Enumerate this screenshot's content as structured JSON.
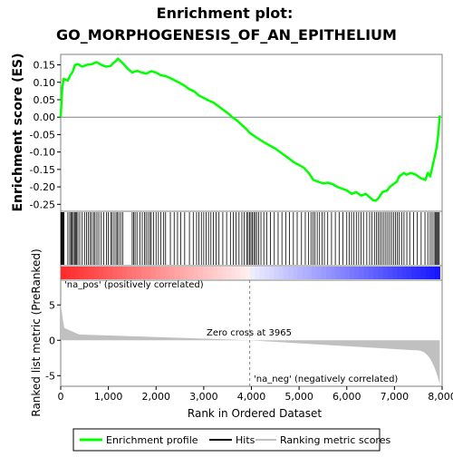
{
  "chart_data": {
    "type": "line",
    "title_line1": "Enrichment plot:",
    "title_line2": "GO_MORPHOGENESIS_OF_AN_EPITHELIUM",
    "es_ylabel": "Enrichment score (ES)",
    "rank_ylabel": "Ranked list metric (PreRanked)",
    "xlabel": "Rank in Ordered Dataset",
    "xlim": [
      0,
      8000
    ],
    "es_ylim": [
      -0.27,
      0.18
    ],
    "rank_ylim": [
      -6.5,
      8.5
    ],
    "x_ticks": [
      0,
      1000,
      2000,
      3000,
      4000,
      5000,
      6000,
      7000,
      8000
    ],
    "x_tick_labels": [
      "0",
      "1,000",
      "2,000",
      "3,000",
      "4,000",
      "5,000",
      "6,000",
      "7,000",
      "8,000"
    ],
    "es_ticks": [
      0.15,
      0.1,
      0.05,
      0.0,
      -0.05,
      -0.1,
      -0.15,
      -0.2,
      -0.25
    ],
    "es_tick_labels": [
      "0.15",
      "0.10",
      "0.05",
      "0.00",
      "-0.05",
      "-0.10",
      "-0.15",
      "-0.20",
      "-0.25"
    ],
    "rank_ticks": [
      5,
      0,
      -5
    ],
    "rank_tick_labels": [
      "5",
      "0",
      "-5"
    ],
    "pos_label": "'na_pos' (positively correlated)",
    "neg_label": "'na_neg' (negatively correlated)",
    "zero_cross_label": "Zero cross at 3965",
    "zero_cross": 3965,
    "n_genes": 7950,
    "legend": [
      {
        "key": "es",
        "label": "Enrichment profile",
        "color": "#00ff00"
      },
      {
        "key": "hits",
        "label": "Hits",
        "color": "#000000"
      },
      {
        "key": "rank",
        "label": "Ranking metric scores",
        "color": "#c0c0c0"
      }
    ],
    "colors": {
      "es_line": "#00ff00",
      "hits": "#000000",
      "rank_fill": "#c0c0c0",
      "pos_text": "#ff0000",
      "neg_text": "#0000ff",
      "zero_line": "#808080"
    },
    "es_series": [
      [
        0,
        0.0
      ],
      [
        30,
        0.08
      ],
      [
        60,
        0.11
      ],
      [
        150,
        0.105
      ],
      [
        200,
        0.12
      ],
      [
        250,
        0.13
      ],
      [
        300,
        0.15
      ],
      [
        360,
        0.152
      ],
      [
        450,
        0.145
      ],
      [
        550,
        0.15
      ],
      [
        650,
        0.152
      ],
      [
        750,
        0.158
      ],
      [
        850,
        0.15
      ],
      [
        950,
        0.145
      ],
      [
        1050,
        0.147
      ],
      [
        1100,
        0.155
      ],
      [
        1150,
        0.16
      ],
      [
        1200,
        0.168
      ],
      [
        1300,
        0.155
      ],
      [
        1400,
        0.14
      ],
      [
        1500,
        0.128
      ],
      [
        1600,
        0.133
      ],
      [
        1700,
        0.128
      ],
      [
        1800,
        0.125
      ],
      [
        1900,
        0.132
      ],
      [
        2000,
        0.128
      ],
      [
        2100,
        0.12
      ],
      [
        2200,
        0.118
      ],
      [
        2300,
        0.112
      ],
      [
        2400,
        0.105
      ],
      [
        2500,
        0.098
      ],
      [
        2600,
        0.09
      ],
      [
        2700,
        0.08
      ],
      [
        2800,
        0.074
      ],
      [
        2900,
        0.062
      ],
      [
        3000,
        0.055
      ],
      [
        3100,
        0.048
      ],
      [
        3200,
        0.042
      ],
      [
        3300,
        0.032
      ],
      [
        3400,
        0.022
      ],
      [
        3500,
        0.012
      ],
      [
        3600,
        0.0
      ],
      [
        3700,
        -0.01
      ],
      [
        3800,
        -0.022
      ],
      [
        3900,
        -0.035
      ],
      [
        3965,
        -0.045
      ],
      [
        4100,
        -0.058
      ],
      [
        4300,
        -0.075
      ],
      [
        4500,
        -0.09
      ],
      [
        4700,
        -0.11
      ],
      [
        4900,
        -0.13
      ],
      [
        5100,
        -0.145
      ],
      [
        5200,
        -0.16
      ],
      [
        5300,
        -0.18
      ],
      [
        5400,
        -0.185
      ],
      [
        5500,
        -0.19
      ],
      [
        5600,
        -0.188
      ],
      [
        5700,
        -0.192
      ],
      [
        5800,
        -0.2
      ],
      [
        5900,
        -0.205
      ],
      [
        6000,
        -0.21
      ],
      [
        6100,
        -0.22
      ],
      [
        6200,
        -0.215
      ],
      [
        6300,
        -0.225
      ],
      [
        6400,
        -0.22
      ],
      [
        6500,
        -0.232
      ],
      [
        6550,
        -0.238
      ],
      [
        6600,
        -0.24
      ],
      [
        6650,
        -0.235
      ],
      [
        6700,
        -0.225
      ],
      [
        6750,
        -0.215
      ],
      [
        6850,
        -0.21
      ],
      [
        6900,
        -0.2
      ],
      [
        7000,
        -0.19
      ],
      [
        7050,
        -0.185
      ],
      [
        7100,
        -0.17
      ],
      [
        7200,
        -0.16
      ],
      [
        7250,
        -0.165
      ],
      [
        7350,
        -0.16
      ],
      [
        7450,
        -0.165
      ],
      [
        7550,
        -0.175
      ],
      [
        7650,
        -0.18
      ],
      [
        7700,
        -0.16
      ],
      [
        7750,
        -0.17
      ],
      [
        7800,
        -0.14
      ],
      [
        7850,
        -0.11
      ],
      [
        7880,
        -0.09
      ],
      [
        7910,
        -0.06
      ],
      [
        7930,
        -0.03
      ],
      [
        7950,
        0.005
      ]
    ],
    "hits": [
      5,
      15,
      28,
      40,
      55,
      70,
      150,
      190,
      215,
      240,
      265,
      290,
      310,
      330,
      360,
      400,
      450,
      500,
      540,
      580,
      620,
      650,
      690,
      720,
      760,
      800,
      850,
      900,
      960,
      1000,
      1050,
      1080,
      1120,
      1160,
      1190,
      1220,
      1260,
      1300,
      1500,
      1530,
      1560,
      1600,
      1660,
      1710,
      1760,
      1790,
      1830,
      1870,
      1900,
      1950,
      2000,
      2050,
      2100,
      2160,
      2200,
      2300,
      2380,
      2450,
      2520,
      2600,
      2700,
      2780,
      2850,
      2900,
      2950,
      3000,
      3050,
      3100,
      3150,
      3200,
      3260,
      3320,
      3400,
      3480,
      3560,
      3620,
      3680,
      3740,
      3800,
      3850,
      3900,
      3930,
      3960,
      3990,
      4020,
      4050,
      4080,
      4110,
      4150,
      4200,
      4260,
      4320,
      4400,
      4480,
      4560,
      4640,
      4720,
      4800,
      4880,
      4960,
      5050,
      5130,
      5200,
      5250,
      5290,
      5330,
      5380,
      5430,
      5480,
      5530,
      5600,
      5680,
      5760,
      5840,
      5920,
      6000,
      6050,
      6100,
      6150,
      6200,
      6250,
      6300,
      6350,
      6420,
      6480,
      6530,
      6580,
      6620,
      6660,
      6700,
      6740,
      6780,
      6820,
      6860,
      6900,
      6940,
      6980,
      7020,
      7060,
      7100,
      7150,
      7200,
      7260,
      7320,
      7400,
      7480,
      7560,
      7640,
      7700,
      7750,
      7790,
      7830,
      7860,
      7880,
      7900,
      7920,
      7940
    ]
  }
}
